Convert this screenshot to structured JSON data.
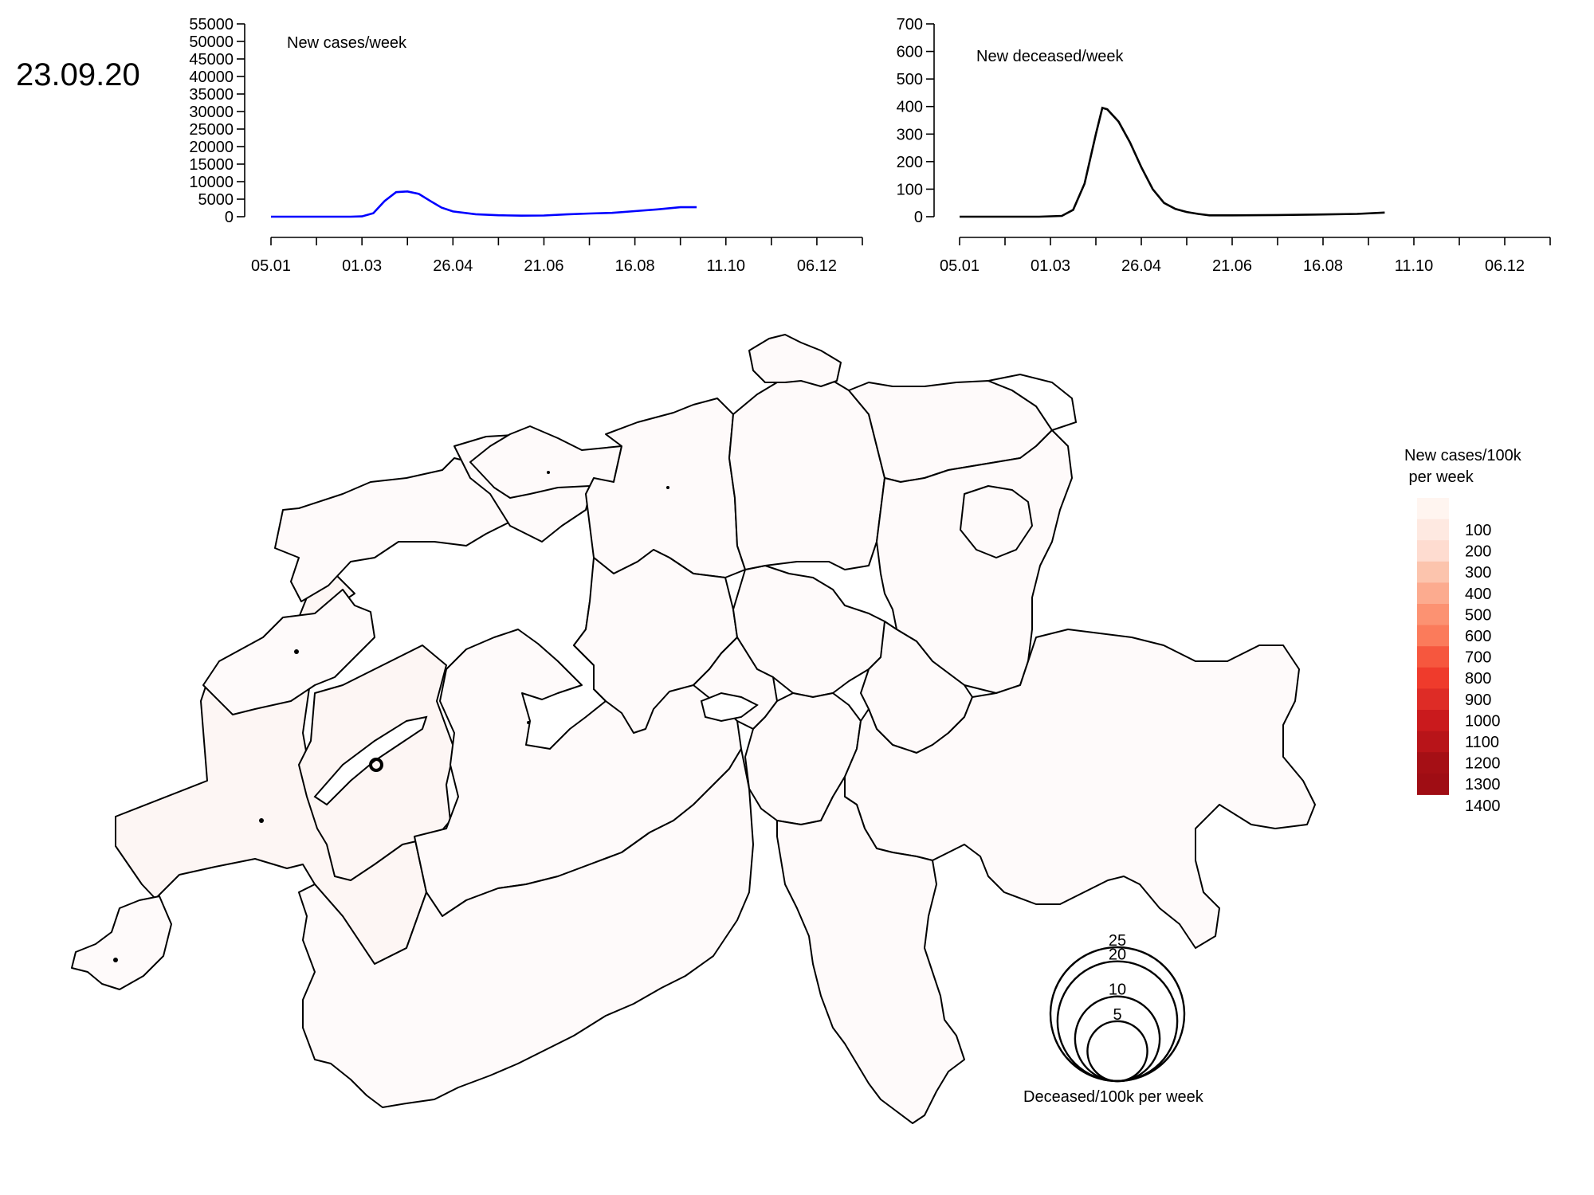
{
  "date": "23.09.20",
  "chart_data": [
    {
      "type": "line",
      "title": "New cases/week",
      "y_ticks": [
        0,
        5000,
        10000,
        15000,
        20000,
        25000,
        30000,
        35000,
        40000,
        45000,
        50000,
        55000
      ],
      "ylim": [
        0,
        55000
      ],
      "x_ticks": [
        "05.01",
        "01.03",
        "26.04",
        "21.06",
        "16.08",
        "11.10",
        "06.12"
      ],
      "xlim": [
        "2020-01-05",
        "2021-01-03"
      ],
      "color": "#0000ff",
      "series": [
        {
          "x": [
            "2020-01-05",
            "2020-02-02",
            "2020-02-23",
            "2020-03-01",
            "2020-03-08",
            "2020-03-15",
            "2020-03-22",
            "2020-03-29",
            "2020-04-05",
            "2020-04-12",
            "2020-04-19",
            "2020-04-26",
            "2020-05-10",
            "2020-05-24",
            "2020-06-07",
            "2020-06-21",
            "2020-07-05",
            "2020-07-19",
            "2020-08-02",
            "2020-08-16",
            "2020-08-30",
            "2020-09-13",
            "2020-09-23"
          ],
          "values": [
            0,
            0,
            0,
            100,
            1000,
            4500,
            7000,
            7200,
            6500,
            4500,
            2600,
            1500,
            700,
            400,
            300,
            350,
            650,
            900,
            1100,
            1600,
            2100,
            2700,
            2700
          ]
        }
      ]
    },
    {
      "type": "line",
      "title": "New deceased/week",
      "y_ticks": [
        0,
        100,
        200,
        300,
        400,
        500,
        600,
        700
      ],
      "ylim": [
        0,
        700
      ],
      "x_ticks": [
        "05.01",
        "01.03",
        "26.04",
        "21.06",
        "16.08",
        "11.10",
        "06.12"
      ],
      "xlim": [
        "2020-01-05",
        "2021-01-03"
      ],
      "color": "#000000",
      "series": [
        {
          "x": [
            "2020-01-05",
            "2020-02-02",
            "2020-02-23",
            "2020-03-08",
            "2020-03-15",
            "2020-03-22",
            "2020-03-29",
            "2020-04-02",
            "2020-04-05",
            "2020-04-12",
            "2020-04-19",
            "2020-04-26",
            "2020-05-03",
            "2020-05-10",
            "2020-05-17",
            "2020-05-24",
            "2020-05-31",
            "2020-06-07",
            "2020-06-21",
            "2020-07-19",
            "2020-08-16",
            "2020-09-06",
            "2020-09-23"
          ],
          "values": [
            0,
            0,
            0,
            3,
            25,
            120,
            300,
            395,
            390,
            345,
            270,
            180,
            100,
            50,
            28,
            17,
            10,
            5,
            5,
            6,
            8,
            10,
            15
          ]
        }
      ]
    }
  ],
  "map": {
    "legend": {
      "title_line1": "New cases/100k",
      "title_line2": " per week",
      "labels": [
        "100",
        "200",
        "300",
        "400",
        "500",
        "600",
        "700",
        "800",
        "900",
        "1000",
        "1100",
        "1200",
        "1300",
        "1400"
      ],
      "colors": [
        "#fff5f0",
        "#fee9e1",
        "#fedcd0",
        "#fcc4ad",
        "#fcab8f",
        "#fc9272",
        "#fb7b5b",
        "#f6573e",
        "#ef3b2c",
        "#de2c26",
        "#ca1a1d",
        "#b81419",
        "#a50f15",
        "#9f0d14"
      ]
    },
    "circle_legend": {
      "caption": "Deceased/100k per week",
      "values": [
        25,
        20,
        10,
        5
      ]
    }
  }
}
